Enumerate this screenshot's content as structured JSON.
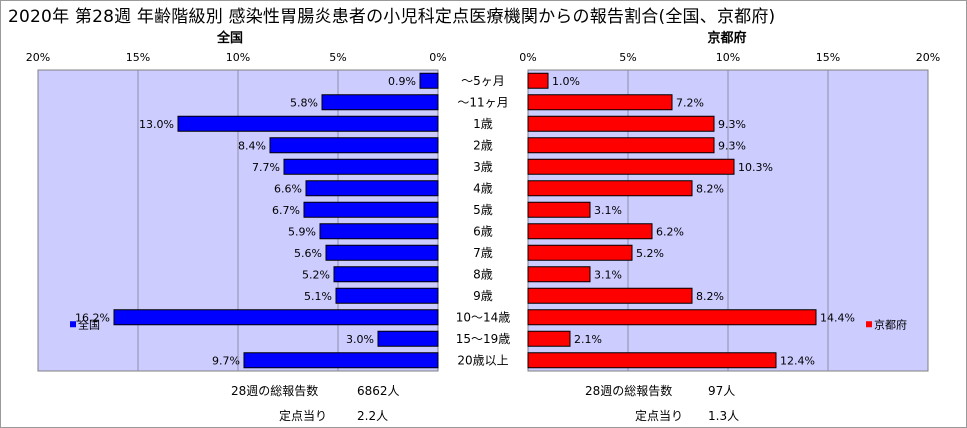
{
  "title": "2020年 第28週 年齢階級別 感染性胃腸炎患者の小児科定点医療機関からの報告割合(全国、京都府)",
  "chart_data": {
    "type": "bar",
    "orientation": "horizontal-butterfly",
    "categories": [
      "～5ヶ月",
      "～11ヶ月",
      "1歳",
      "2歳",
      "3歳",
      "4歳",
      "5歳",
      "6歳",
      "7歳",
      "8歳",
      "9歳",
      "10～14歳",
      "15～19歳",
      "20歳以上"
    ],
    "unit": "%",
    "xlim": [
      0,
      20
    ],
    "ticks": [
      "0%",
      "5%",
      "10%",
      "15%",
      "20%"
    ],
    "tick_values": [
      0,
      5,
      10,
      15,
      20
    ],
    "grid": true,
    "series": [
      {
        "name": "全国",
        "side": "left",
        "color": "#0000ff",
        "values": [
          0.9,
          5.8,
          13.0,
          8.4,
          7.7,
          6.6,
          6.7,
          5.9,
          5.6,
          5.2,
          5.1,
          16.2,
          3.0,
          9.7
        ],
        "labels": [
          "0.9%",
          "5.8%",
          "13.0%",
          "8.4%",
          "7.7%",
          "6.6%",
          "6.7%",
          "5.9%",
          "5.6%",
          "5.2%",
          "5.1%",
          "16.2%",
          "3.0%",
          "9.7%"
        ]
      },
      {
        "name": "京都府",
        "side": "right",
        "color": "#ff0000",
        "values": [
          1.0,
          7.2,
          9.3,
          9.3,
          10.3,
          8.2,
          3.1,
          6.2,
          5.2,
          3.1,
          8.2,
          14.4,
          2.1,
          12.4
        ],
        "labels": [
          "1.0%",
          "7.2%",
          "9.3%",
          "9.3%",
          "10.3%",
          "8.2%",
          "3.1%",
          "6.2%",
          "5.2%",
          "3.1%",
          "8.2%",
          "14.4%",
          "2.1%",
          "12.4%"
        ]
      }
    ],
    "plot_background": "#ccccff"
  },
  "summary": {
    "national": {
      "total_label": "28週の総報告数",
      "total_value": "6862人",
      "per_site_label": "定点当り",
      "per_site_value": "2.2人"
    },
    "kyoto": {
      "total_label": "28週の総報告数",
      "total_value": "97人",
      "per_site_label": "定点当り",
      "per_site_value": "1.3人"
    }
  }
}
